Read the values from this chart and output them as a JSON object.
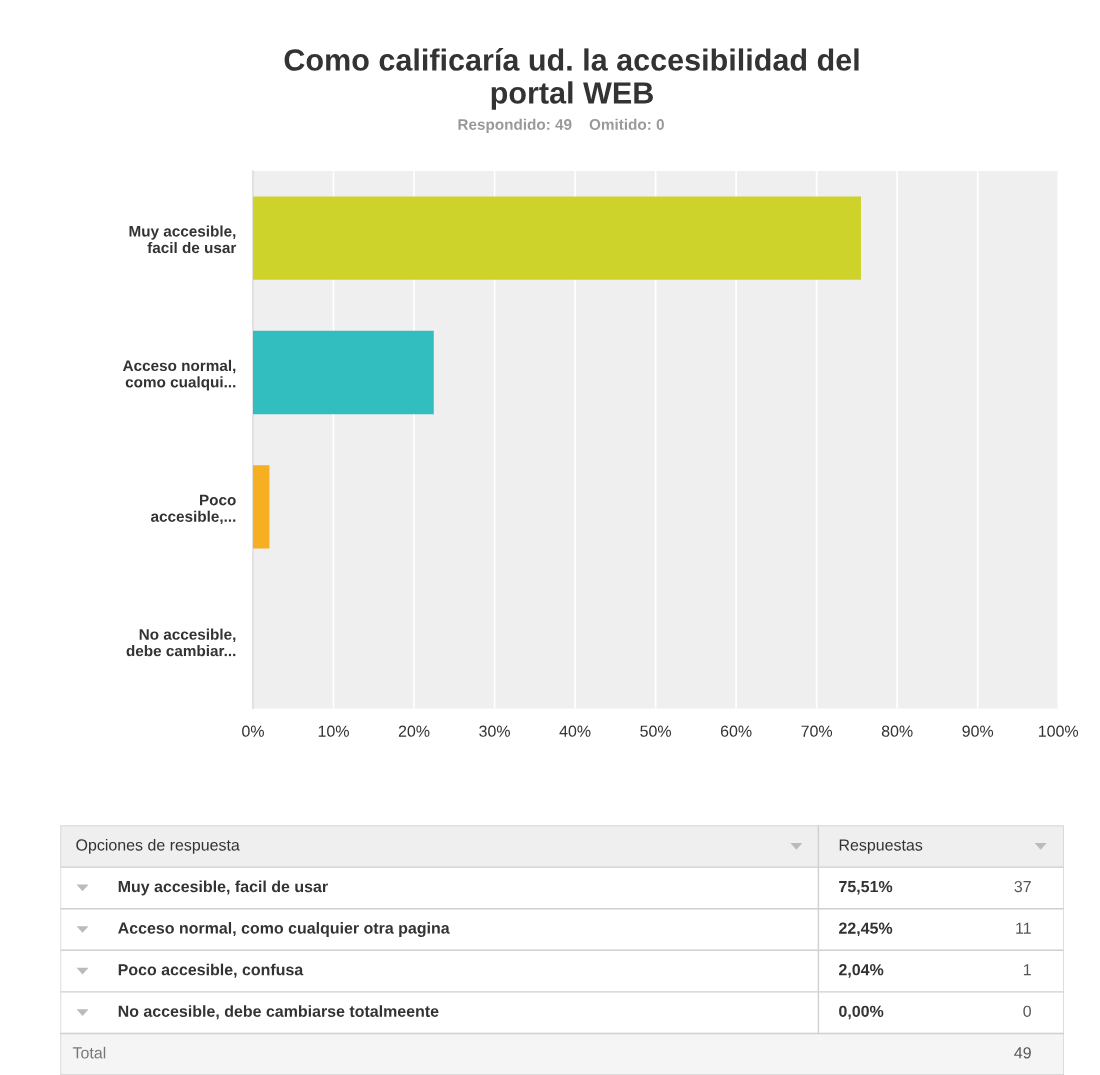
{
  "chart_data": [
    {
      "type": "bar",
      "orientation": "horizontal",
      "title": "Como calificaría ud. la accesibilidad del\nportal WEB",
      "subtitle": "Respondido: 49    Omitido: 0",
      "categories": [
        "Muy accesible,\nfacil de usar",
        "Acceso normal,\ncomo cualqui...",
        "Poco\naccesible,...",
        "No accesible,\ndebe cambiar..."
      ],
      "values": [
        75.51,
        22.45,
        2.04,
        0.0
      ],
      "colors": [
        "#cdd32a",
        "#32bdbf",
        "#f6ae22",
        "#e8634b"
      ],
      "xlim": [
        0,
        100
      ],
      "xticks": [
        {
          "value": 0,
          "label": "0%"
        },
        {
          "value": 10,
          "label": "10%"
        },
        {
          "value": 20,
          "label": "20%"
        },
        {
          "value": 30,
          "label": "30%"
        },
        {
          "value": 40,
          "label": "40%"
        },
        {
          "value": 50,
          "label": "50%"
        },
        {
          "value": 60,
          "label": "60%"
        },
        {
          "value": 70,
          "label": "70%"
        },
        {
          "value": 80,
          "label": "80%"
        },
        {
          "value": 90,
          "label": "90%"
        },
        {
          "value": 100,
          "label": "100%"
        }
      ],
      "grid": "x"
    },
    {
      "type": "other",
      "categories": [
        "Muy accesible, facil de usar",
        "Acceso normal, como cualquier otra pagina",
        "Poco accesible, confusa",
        "No accesible, debe cambiarse totalmeente"
      ],
      "annotations": [
        "Opciones de respuesta",
        "Respuestas",
        "Total",
        "49",
        "75,51%",
        "37",
        "22,45%",
        "11",
        "2,04%",
        "1",
        "0,00%",
        "0"
      ]
    }
  ]
}
